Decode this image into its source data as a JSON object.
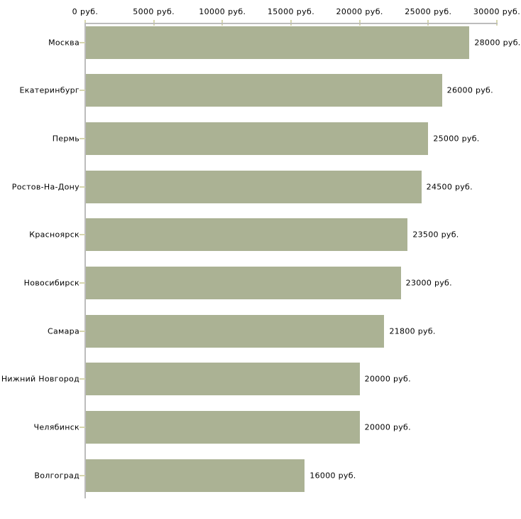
{
  "chart_data": {
    "type": "bar",
    "orientation": "horizontal",
    "title": "",
    "xlabel": "",
    "ylabel": "",
    "unit": "руб.",
    "categories": [
      "Москва",
      "Екатеринбург",
      "Пермь",
      "Ростов-На-Дону",
      "Красноярск",
      "Новосибирск",
      "Самара",
      "Нижний Новгород",
      "Челябинск",
      "Волгоград"
    ],
    "values": [
      28000,
      26000,
      25000,
      24500,
      23500,
      23000,
      21800,
      20000,
      20000,
      16000
    ],
    "value_labels": [
      "28000 руб.",
      "26000 руб.",
      "25000 руб.",
      "24500 руб.",
      "23500 руб.",
      "23000 руб.",
      "21800 руб.",
      "20000 руб.",
      "20000 руб.",
      "16000 руб."
    ],
    "x_axis": {
      "position": "top",
      "range": [
        0,
        30000
      ],
      "ticks": [
        0,
        5000,
        10000,
        15000,
        20000,
        25000,
        30000
      ],
      "tick_labels": [
        "0 руб.",
        "5000 руб.",
        "10000 руб.",
        "15000 руб.",
        "20000 руб.",
        "25000 руб.",
        "30000 руб."
      ]
    },
    "grid": "off",
    "legend": "none",
    "colors": {
      "bar": "#abb294",
      "axis_line": "#bcbcbc",
      "tick_mark": "#d6d6ae",
      "text": "#000000",
      "background": "#ffffff"
    }
  }
}
